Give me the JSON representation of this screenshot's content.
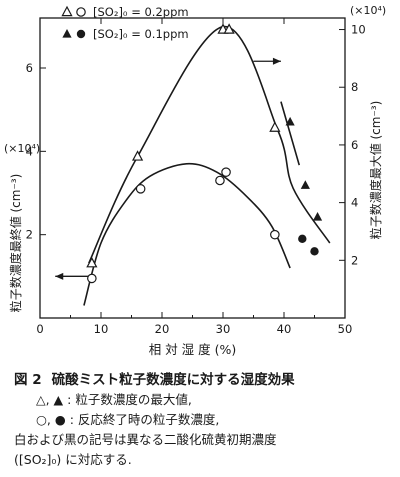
{
  "chart_data": {
    "type": "scatter",
    "xlabel": "相 対 湿 度 (%)",
    "xlim": [
      0,
      50
    ],
    "x_ticks": [
      "0",
      "10",
      "20",
      "30",
      "40",
      "50"
    ],
    "y_left_label": "粒子数濃度最終値 (cm⁻³)",
    "y_left_multiplier": "(×10⁴)",
    "y_left_ticks": [
      "2",
      "4",
      "6"
    ],
    "y_left_ylim": [
      0,
      7.2
    ],
    "y_right_label": "粒子数濃度最大値 (cm⁻³)",
    "y_right_multiplier": "(×10⁴)",
    "y_right_ticks": [
      "2",
      "4",
      "6",
      "8",
      "10"
    ],
    "y_right_ylim": [
      0,
      10.4
    ],
    "legend": [
      {
        "symbols": [
          "open-triangle",
          "open-circle"
        ],
        "label": "[SO₂]₀ = 0.2ppm"
      },
      {
        "symbols": [
          "filled-triangle",
          "filled-circle"
        ],
        "label": "[SO₂]₀ = 0.1ppm"
      }
    ],
    "series": [
      {
        "marker": "open-triangle",
        "axis": "right",
        "points": [
          [
            8.5,
            1.9
          ],
          [
            16,
            5.6
          ],
          [
            30,
            10.0
          ],
          [
            31,
            10.0
          ],
          [
            38.5,
            6.6
          ]
        ]
      },
      {
        "marker": "filled-triangle",
        "axis": "right",
        "points": [
          [
            41,
            6.8
          ],
          [
            43.5,
            4.6
          ],
          [
            45.5,
            3.5
          ]
        ]
      },
      {
        "marker": "open-circle",
        "axis": "left",
        "points": [
          [
            8.5,
            0.95
          ],
          [
            16.5,
            3.1
          ],
          [
            29.5,
            3.3
          ],
          [
            30.5,
            3.5
          ],
          [
            38.5,
            2.0
          ]
        ]
      },
      {
        "marker": "filled-circle",
        "axis": "left",
        "points": [
          [
            43,
            1.9
          ],
          [
            45,
            1.6
          ]
        ]
      }
    ],
    "curves": [
      {
        "axis": "right",
        "points": [
          [
            8,
            1.9
          ],
          [
            16,
            5.6
          ],
          [
            30,
            10.1
          ],
          [
            39,
            6.5
          ],
          [
            41.5,
            4.5
          ],
          [
            47.5,
            2.6
          ]
        ]
      },
      {
        "axis": "right",
        "points": [
          [
            39.5,
            7.5
          ],
          [
            42.5,
            5.3
          ]
        ]
      },
      {
        "axis": "left",
        "points": [
          [
            7.2,
            0.3
          ],
          [
            10,
            1.8
          ],
          [
            14,
            2.8
          ],
          [
            18,
            3.4
          ],
          [
            24,
            3.7
          ],
          [
            29,
            3.5
          ],
          [
            34,
            2.9
          ],
          [
            38,
            2.2
          ],
          [
            41,
            1.2
          ]
        ]
      }
    ],
    "arrows": [
      {
        "axis": "right",
        "direction": "right",
        "x_range": [
          35,
          39.5
        ],
        "y": 8.9
      },
      {
        "axis": "left",
        "direction": "left",
        "x_range": [
          2.5,
          8
        ],
        "y": 1.0
      }
    ]
  },
  "caption": {
    "number": "図 2",
    "title": "硫酸ミスト粒子数濃度に対する湿度効果",
    "line1": "△, ▲ : 粒子数濃度の最大値,",
    "line2": "○, ● : 反応終了時の粒子数濃度,",
    "line3": "白および黒の記号は異なる二酸化硫黄初期濃度",
    "line4": "([SO₂]₀) に対応する."
  }
}
